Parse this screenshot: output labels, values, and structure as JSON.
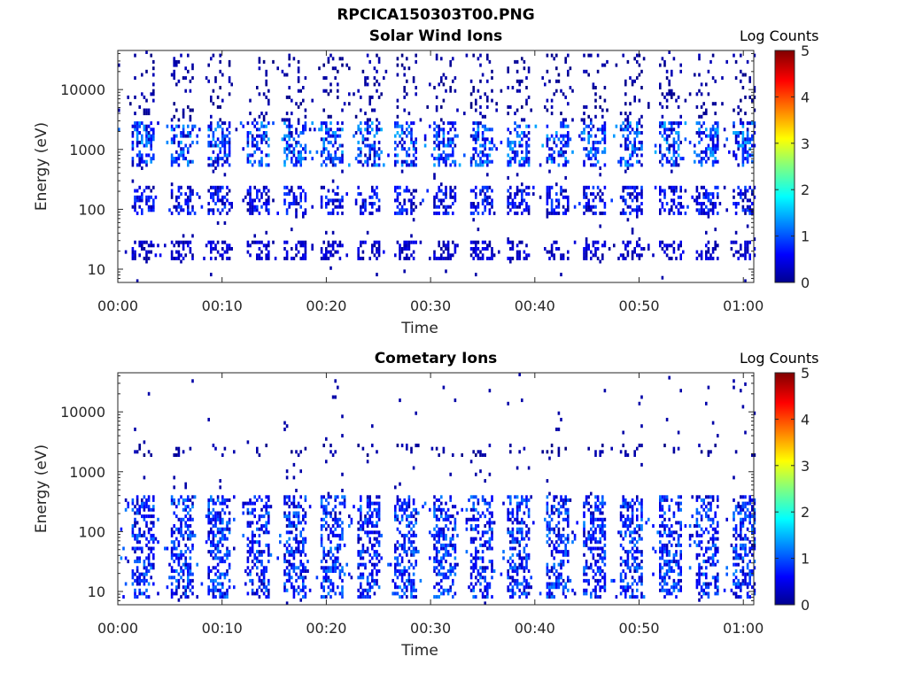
{
  "figure": {
    "title": "RPCICA150303T00.PNG"
  },
  "colorbar": {
    "label": "Log Counts",
    "ticks": [
      "0",
      "1",
      "2",
      "3",
      "4",
      "5"
    ],
    "range": [
      0,
      5
    ],
    "colormap": "jet"
  },
  "chart_data": [
    {
      "type": "heatmap",
      "title": "Solar Wind Ions",
      "xlabel": "Time",
      "ylabel": "Energy (eV)",
      "x_ticks": [
        "00:00",
        "00:10",
        "00:20",
        "00:30",
        "00:40",
        "00:50",
        "01:00"
      ],
      "xlim_minutes": [
        0,
        61
      ],
      "y_ticks": [
        "10",
        "100",
        "1000",
        "10000"
      ],
      "y_scale": "log",
      "ylim_eV": [
        6,
        45000
      ],
      "value_range": [
        0,
        5
      ],
      "value_label": "Log Counts",
      "scan_period_minutes": 3.6,
      "scan_start_minutes": [
        1.3,
        5.0,
        8.6,
        12.2,
        15.8,
        19.3,
        22.9,
        26.5,
        30.1,
        33.7,
        37.3,
        40.9,
        44.5,
        48.1,
        51.7,
        55.3,
        58.9
      ],
      "bands": [
        {
          "energy_eV": [
            15,
            30
          ],
          "log_counts": [
            0.1,
            0.6
          ],
          "description": "dense low-energy"
        },
        {
          "energy_eV": [
            80,
            250
          ],
          "log_counts": [
            0.1,
            1.0
          ],
          "description": "intermediate"
        },
        {
          "energy_eV": [
            500,
            3000
          ],
          "log_counts": [
            0.2,
            1.5
          ],
          "description": "solar wind peak"
        },
        {
          "energy_eV": [
            3000,
            40000
          ],
          "log_counts": [
            0.0,
            0.3
          ],
          "description": "sparse high-energy"
        }
      ]
    },
    {
      "type": "heatmap",
      "title": "Cometary Ions",
      "xlabel": "Time",
      "ylabel": "Energy (eV)",
      "x_ticks": [
        "00:00",
        "00:10",
        "00:20",
        "00:30",
        "00:40",
        "00:50",
        "01:00"
      ],
      "xlim_minutes": [
        0,
        61
      ],
      "y_ticks": [
        "10",
        "100",
        "1000",
        "10000"
      ],
      "y_scale": "log",
      "ylim_eV": [
        6,
        45000
      ],
      "value_range": [
        0,
        5
      ],
      "value_label": "Log Counts",
      "scan_period_minutes": 3.6,
      "scan_start_minutes": [
        1.3,
        5.0,
        8.6,
        12.2,
        15.8,
        19.3,
        22.9,
        26.5,
        30.1,
        33.7,
        37.3,
        40.9,
        44.5,
        48.1,
        51.7,
        55.3,
        58.9
      ],
      "bands": [
        {
          "energy_eV": [
            8,
            40
          ],
          "log_counts": [
            0.2,
            1.3
          ],
          "description": "low-energy cometary"
        },
        {
          "energy_eV": [
            40,
            400
          ],
          "log_counts": [
            0.2,
            1.3
          ],
          "description": "pickup ions"
        },
        {
          "energy_eV": [
            1800,
            3000
          ],
          "log_counts": [
            0.0,
            0.3
          ],
          "description": "sparse line"
        }
      ]
    }
  ]
}
